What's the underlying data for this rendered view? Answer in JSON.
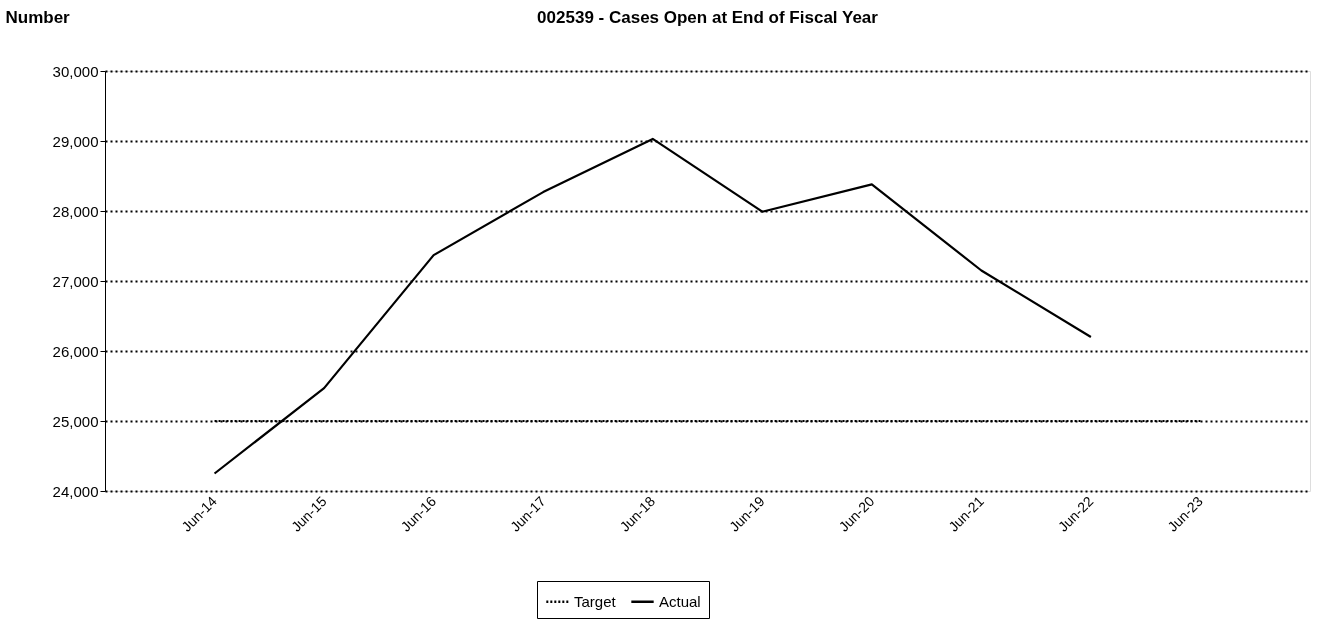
{
  "chart_data": {
    "type": "line",
    "title": "002539 - Cases Open at End of Fiscal Year",
    "ylabel": "Number",
    "categories": [
      "Jun-14",
      "Jun-15",
      "Jun-16",
      "Jun-17",
      "Jun-18",
      "Jun-19",
      "Jun-20",
      "Jun-21",
      "Jun-22",
      "Jun-23"
    ],
    "series": [
      {
        "name": "Target",
        "color": "#000000",
        "line_style": "dotted",
        "values": [
          25000,
          25000,
          25000,
          25000,
          25000,
          25000,
          25000,
          25000,
          25000,
          25000
        ]
      },
      {
        "name": "Actual",
        "color": "#000000",
        "line_style": "solid",
        "values": [
          24250,
          25470,
          27370,
          28270,
          29030,
          27990,
          28380,
          27150,
          26200,
          null
        ]
      }
    ],
    "ylim": [
      24000,
      30000
    ],
    "yticks": [
      {
        "value": 24000,
        "label": "24,000"
      },
      {
        "value": 25000,
        "label": "25,000"
      },
      {
        "value": 26000,
        "label": "26,000"
      },
      {
        "value": 27000,
        "label": "27,000"
      },
      {
        "value": 28000,
        "label": "28,000"
      },
      {
        "value": 29000,
        "label": "29,000"
      },
      {
        "value": 30000,
        "label": "30,000"
      }
    ],
    "grid": "y",
    "legend": "bottom",
    "marker": "none"
  }
}
